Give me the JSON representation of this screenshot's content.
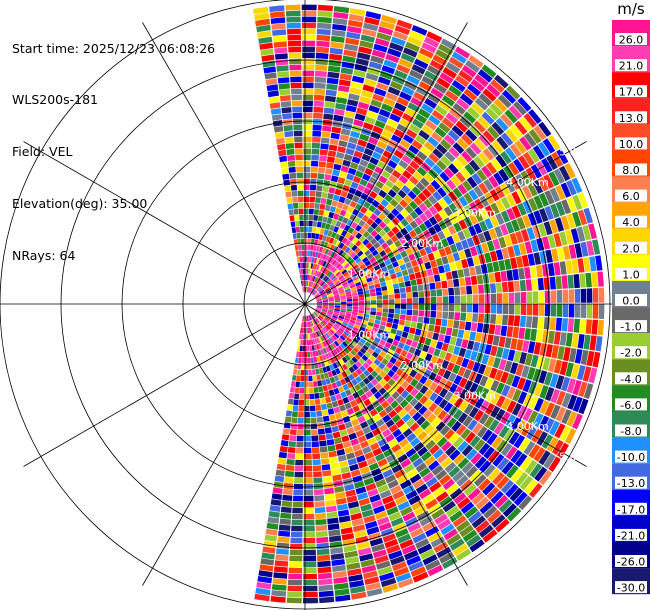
{
  "header": {
    "start_time": "Start time: 2025/12/23 06:08:26",
    "instrument": "WLS200s-181",
    "field": "Field: VEL",
    "elevation": "Elevation(deg): 35.00",
    "nrays": "NRays: 64"
  },
  "chart_data": {
    "type": "heatmap",
    "projection": "polar-ppi",
    "field": "VEL",
    "units": "m/s",
    "n_rays": 64,
    "azimuth_range_deg": [
      -10,
      190
    ],
    "range_rings_km": [
      "1.00Km",
      "2.00Km",
      "3.00Km",
      "4.00Km",
      "5.00Km"
    ],
    "azimuth_spokes_deg": [
      0,
      30,
      60,
      90,
      120,
      150,
      180,
      210,
      240,
      270,
      300,
      330
    ],
    "colorbar": {
      "unit_label": "m/s",
      "ticks": [
        "26.0",
        "21.0",
        "17.0",
        "13.0",
        "10.0",
        "8.0",
        "6.0",
        "4.0",
        "2.0",
        "1.0",
        "0.0",
        "-1.0",
        "-2.0",
        "-4.0",
        "-6.0",
        "-8.0",
        "-10.0",
        "-13.0",
        "-17.0",
        "-21.0",
        "-26.0",
        "-30.0"
      ],
      "colors": [
        "#ff1493",
        "#ff3cb4",
        "#ff0000",
        "#ff2020",
        "#ff4c28",
        "#ff4500",
        "#ff7f50",
        "#ffa500",
        "#ffd700",
        "#ffff00",
        "#708090",
        "#696969",
        "#9acd32",
        "#6b8e23",
        "#228b22",
        "#2e8b57",
        "#1e90ff",
        "#4169e1",
        "#0000ff",
        "#0000cd",
        "#00008b",
        "#191970"
      ]
    }
  }
}
